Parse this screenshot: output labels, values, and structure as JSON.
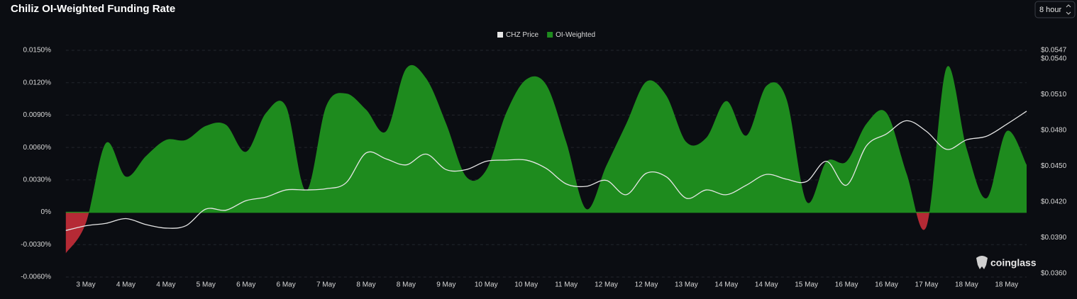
{
  "interval_selector": "8 hour",
  "watermark": "coinglass",
  "chart_data": {
    "type": "area",
    "title": "Chiliz OI-Weighted Funding Rate",
    "categories": [
      null,
      "3 May",
      null,
      "4 May",
      null,
      "4 May",
      null,
      "5 May",
      null,
      "6 May",
      null,
      "6 May",
      null,
      "7 May",
      null,
      "8 May",
      null,
      "8 May",
      null,
      "9 May",
      null,
      "10 May",
      null,
      "10 May",
      null,
      "11 May",
      null,
      "12 May",
      null,
      "12 May",
      null,
      "13 May",
      null,
      "14 May",
      null,
      "14 May",
      null,
      "15 May",
      null,
      "16 May",
      null,
      "16 May",
      null,
      "17 May",
      null,
      "18 May",
      null,
      "18 May",
      null
    ],
    "series": [
      {
        "name": "CHZ Price",
        "color": "#e6e6e6",
        "axis": "y2",
        "kind": "line",
        "values": [
          0.0396,
          0.04,
          0.0402,
          0.0406,
          0.0401,
          0.0398,
          0.04,
          0.0414,
          0.0413,
          0.0421,
          0.0424,
          0.043,
          0.043,
          0.0431,
          0.0436,
          0.0461,
          0.0456,
          0.0451,
          0.046,
          0.0447,
          0.0447,
          0.0454,
          0.0455,
          0.0455,
          0.0448,
          0.0435,
          0.0433,
          0.0438,
          0.0426,
          0.0444,
          0.0441,
          0.0423,
          0.043,
          0.0426,
          0.0434,
          0.0443,
          0.0439,
          0.0437,
          0.0454,
          0.0434,
          0.0467,
          0.0477,
          0.0488,
          0.0479,
          0.0464,
          0.0472,
          0.0475,
          0.0485,
          0.0496
        ]
      },
      {
        "name": "OI-Weighted",
        "color": "#1e8b1e",
        "negative_color": "#b52a35",
        "axis": "y",
        "kind": "area",
        "values": [
          -0.0038,
          -0.001,
          0.0064,
          0.0033,
          0.0052,
          0.0067,
          0.0067,
          0.008,
          0.0081,
          0.0056,
          0.0092,
          0.0098,
          0.002,
          0.0098,
          0.011,
          0.0095,
          0.0075,
          0.0133,
          0.0124,
          0.0082,
          0.0033,
          0.0039,
          0.0092,
          0.0123,
          0.0118,
          0.0065,
          0.0003,
          0.0043,
          0.0082,
          0.0121,
          0.0108,
          0.0065,
          0.0069,
          0.0103,
          0.0071,
          0.0117,
          0.0105,
          0.001,
          0.0047,
          0.0047,
          0.0082,
          0.0092,
          0.0036,
          -0.0013,
          0.0134,
          0.0059,
          0.0013,
          0.0075,
          0.0044
        ]
      }
    ],
    "ylim": [
      -0.006,
      0.015
    ],
    "yticks": [
      {
        "value": 0.015,
        "label": "0.0150%"
      },
      {
        "value": 0.012,
        "label": "0.0120%"
      },
      {
        "value": 0.009,
        "label": "0.0090%"
      },
      {
        "value": 0.006,
        "label": "0.0060%"
      },
      {
        "value": 0.003,
        "label": "0.0030%"
      },
      {
        "value": 0,
        "label": "0%"
      },
      {
        "value": -0.003,
        "label": "-0.0030%"
      },
      {
        "value": -0.006,
        "label": "-0.0060%"
      }
    ],
    "y2lim": [
      0.0357,
      0.0547
    ],
    "y2ticks": [
      {
        "value": 0.0547,
        "label": "$0.0547"
      },
      {
        "value": 0.054,
        "label": "$0.0540"
      },
      {
        "value": 0.051,
        "label": "$0.0510"
      },
      {
        "value": 0.048,
        "label": "$0.0480"
      },
      {
        "value": 0.045,
        "label": "$0.0450"
      },
      {
        "value": 0.042,
        "label": "$0.0420"
      },
      {
        "value": 0.039,
        "label": "$0.0390"
      },
      {
        "value": 0.036,
        "label": "$0.0360"
      }
    ],
    "grid": true,
    "legend": "top"
  }
}
